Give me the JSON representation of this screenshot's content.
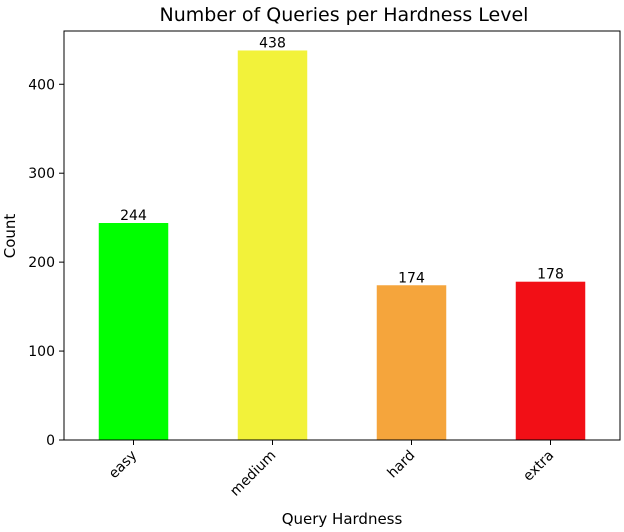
{
  "chart_data": {
    "type": "bar",
    "title": "Number of Queries per Hardness Level",
    "xlabel": "Query Hardness",
    "ylabel": "Count",
    "categories": [
      "easy",
      "medium",
      "hard",
      "extra"
    ],
    "values": [
      244,
      438,
      174,
      178
    ],
    "data_labels": [
      "244",
      "438",
      "174",
      "178"
    ],
    "colors": [
      "#00ff00",
      "#f2f23a",
      "#f5a53c",
      "#f20f16"
    ],
    "ylim": [
      0,
      459.9
    ],
    "yticks": [
      0,
      100,
      200,
      300,
      400
    ],
    "ytick_labels": [
      "0",
      "100",
      "200",
      "300",
      "400"
    ],
    "xtick_rotation": -45,
    "grid": false,
    "legend": "none"
  }
}
